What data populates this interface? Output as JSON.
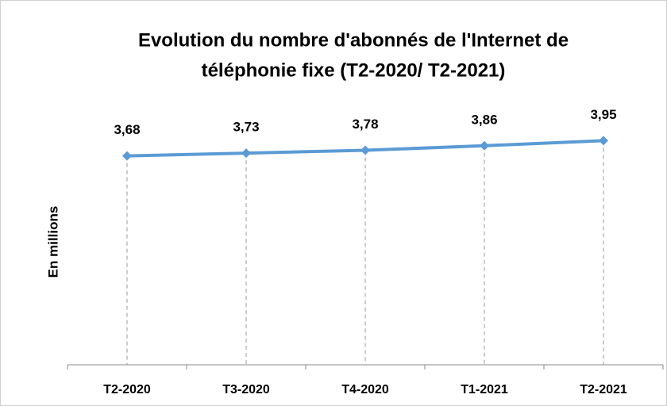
{
  "chart_data": {
    "type": "line",
    "title": [
      "Evolution du nombre d'abonnés de l'Internet de",
      "téléphonie fixe (T2-2020/ T2-2021)"
    ],
    "y_label": "En millions",
    "categories": [
      "T2-2020",
      "T3-2020",
      "T4-2020",
      "T1-2021",
      "T2-2021"
    ],
    "values": [
      3.68,
      3.73,
      3.78,
      3.86,
      3.95
    ],
    "value_labels": [
      "3,68",
      "3,73",
      "3,78",
      "3,86",
      "3,95"
    ],
    "color": "#5b9bd5",
    "ylim": [
      0,
      4.5
    ],
    "drop_lines": true
  }
}
